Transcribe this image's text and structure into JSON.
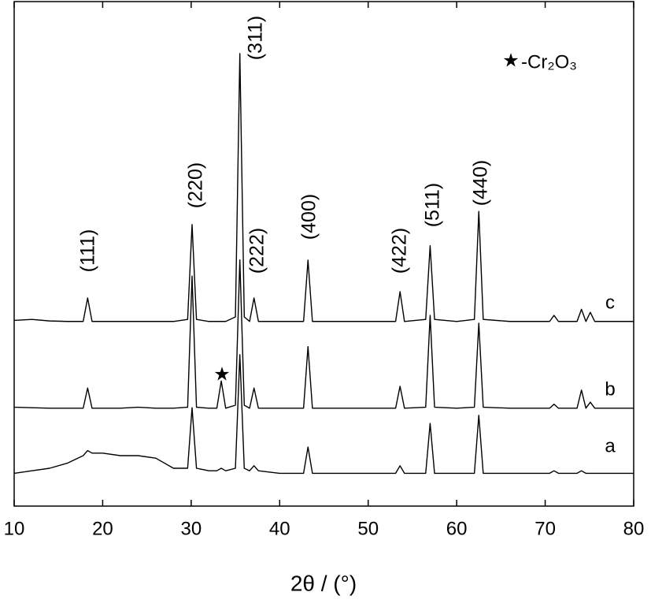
{
  "chart_data": {
    "type": "line",
    "x_label": "2θ / (°)",
    "legend_text": "-Cr₂O₃",
    "annotations": [
      "(111)",
      "(220)",
      "(311)",
      "(222)",
      "(400)",
      "(422)",
      "(511)",
      "(440)"
    ],
    "x": [
      10,
      12,
      14,
      16,
      17.8,
      18.3,
      18.8,
      20,
      22,
      24,
      26,
      28,
      29.6,
      30.1,
      30.6,
      32,
      32.9,
      33.4,
      33.9,
      35,
      35.5,
      36,
      36.6,
      37.1,
      37.6,
      40,
      42.7,
      43.2,
      43.7,
      46,
      48,
      50,
      53.1,
      53.6,
      54.1,
      56.5,
      57,
      57.5,
      60,
      62,
      62.5,
      63,
      66,
      70.5,
      71,
      71.5,
      73.6,
      74.1,
      74.6,
      75.1,
      75.6,
      78,
      80
    ],
    "series": [
      {
        "name": "a",
        "color": "#000000",
        "values": [
          6.5,
          7,
          7.5,
          8.5,
          10,
          11,
          10.5,
          10.5,
          10,
          10,
          9.5,
          7.5,
          7.5,
          19.5,
          7.5,
          7,
          7,
          7.5,
          7,
          7.5,
          30,
          7.5,
          7,
          8,
          7,
          6.5,
          6.5,
          11.7,
          6.5,
          6.5,
          6.5,
          6.5,
          6.5,
          8,
          6.5,
          6.5,
          16.4,
          6.5,
          6.5,
          6.5,
          18,
          6.5,
          6.5,
          6.5,
          7,
          6.5,
          6.5,
          7,
          6.5,
          6.5,
          6.5,
          6.5,
          6.5
        ]
      },
      {
        "name": "b",
        "color": "#000000",
        "values": [
          19.6,
          19.5,
          19.4,
          19.4,
          19.4,
          23.4,
          19.4,
          19.4,
          19.4,
          19.6,
          19.4,
          19.4,
          19.6,
          45.6,
          19.6,
          19.4,
          19.4,
          24.8,
          19.4,
          20,
          48.8,
          20,
          19.4,
          23.4,
          19.4,
          19.4,
          19.4,
          31.6,
          19.4,
          19.4,
          19.4,
          19.4,
          19.4,
          23.75,
          19.4,
          19.6,
          37.8,
          19.6,
          19.4,
          19.6,
          36.25,
          19.6,
          19.4,
          19.4,
          20.2,
          19.4,
          19.4,
          23,
          19.4,
          20.6,
          19.4,
          19.4,
          19.4
        ]
      },
      {
        "name": "c",
        "color": "#000000",
        "values": [
          36.8,
          37,
          36.7,
          36.6,
          36.6,
          41.25,
          36.6,
          36.6,
          36.6,
          36.6,
          36.6,
          36.6,
          37,
          55.8,
          37,
          36.6,
          36.6,
          36.6,
          36.6,
          37.5,
          89.7,
          37.5,
          36.6,
          41.25,
          36.6,
          36.6,
          36.6,
          48.75,
          36.6,
          36.6,
          36.6,
          36.6,
          36.6,
          42.5,
          36.6,
          37,
          51.6,
          37,
          36.6,
          37,
          58.4,
          37,
          36.6,
          36.6,
          37.8,
          36.6,
          36.6,
          39,
          36.6,
          38.4,
          36.6,
          36.6,
          36.6
        ]
      }
    ],
    "xlim": [
      10,
      80
    ],
    "xticks": [
      10,
      20,
      30,
      40,
      50,
      60,
      70,
      80
    ],
    "ylim": [
      0,
      100
    ]
  }
}
